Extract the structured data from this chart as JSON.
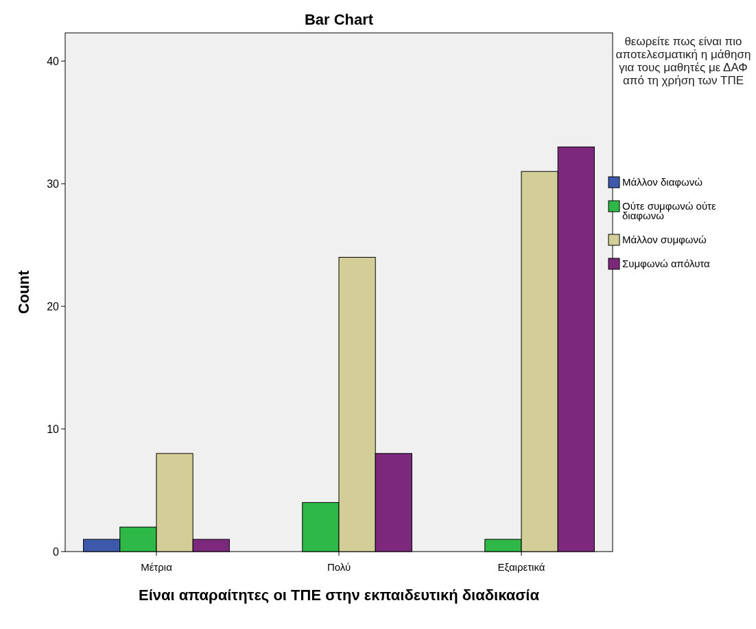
{
  "chart_data": {
    "type": "bar",
    "title": "Bar Chart",
    "xlabel": "Είναι απαραίτητες οι ΤΠΕ στην εκπαιδευτική διαδικασία",
    "ylabel": "Count",
    "legend_title": "θεωρείτε πως είναι πιο αποτελεσματική η μάθηση για τους μαθητές με ΔΑΦ από τη χρήση των ΤΠΕ",
    "categories": [
      "Μέτρια",
      "Πολύ",
      "Εξαιρετικά"
    ],
    "series": [
      {
        "name": "Μάλλον διαφωνώ",
        "color": "#3e58ac",
        "values": [
          1,
          null,
          null
        ]
      },
      {
        "name": "Ούτε συμφωνώ ούτε διαφωνώ",
        "color": "#2eb848",
        "values": [
          2,
          4,
          1
        ]
      },
      {
        "name": "Μάλλον συμφωνώ",
        "color": "#d3ce97",
        "values": [
          8,
          24,
          31
        ]
      },
      {
        "name": "Συμφωνώ απόλυτα",
        "color": "#7c287d",
        "values": [
          1,
          8,
          33
        ]
      }
    ],
    "ylim": [
      0,
      42.3
    ],
    "yticks": [
      0,
      10,
      20,
      30,
      40
    ],
    "grid": false,
    "legend": "right"
  }
}
